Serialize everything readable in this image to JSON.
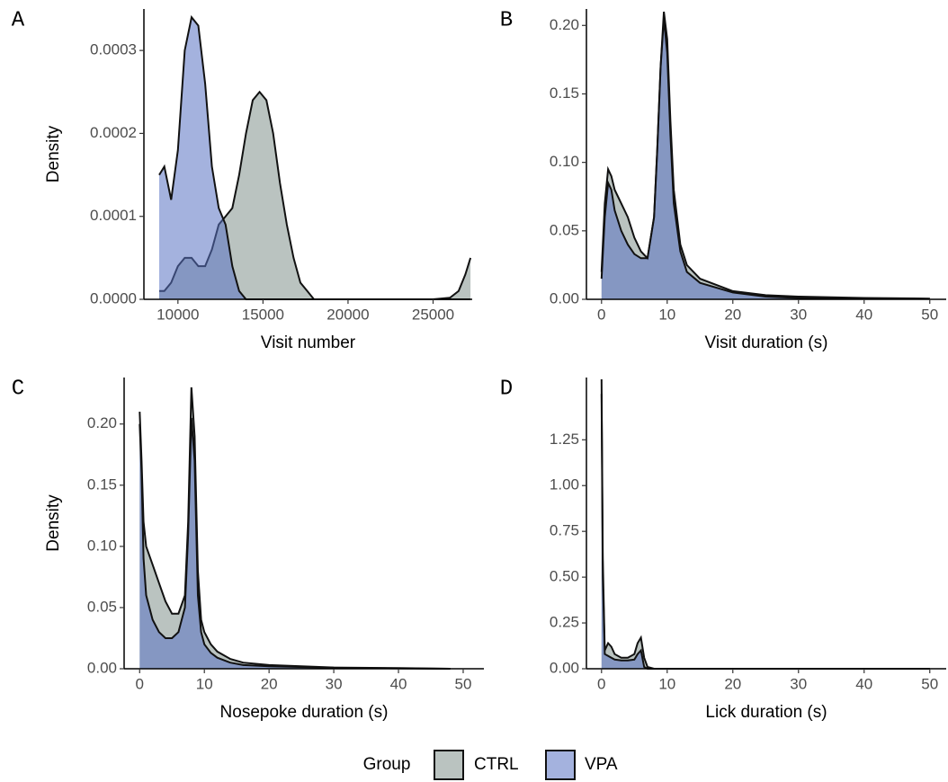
{
  "chart_data": [
    {
      "type": "density",
      "panel_label": "A",
      "x_label": "Visit number",
      "y_label": "Density",
      "x": [
        8900,
        9200,
        9600,
        10000,
        10400,
        10800,
        11200,
        11600,
        12000,
        12400,
        12800,
        13200,
        13600,
        14000,
        14400,
        14800,
        15200,
        15600,
        16000,
        16400,
        16800,
        17200,
        17600,
        18000,
        19000,
        21000,
        23000,
        25000,
        26000,
        26500,
        26900,
        27200
      ],
      "series": [
        {
          "name": "CTRL",
          "color": "#bac3c0",
          "values": [
            1e-05,
            1e-05,
            2e-05,
            4e-05,
            5e-05,
            5e-05,
            4e-05,
            4e-05,
            6e-05,
            9e-05,
            0.0001,
            0.00011,
            0.00015,
            0.0002,
            0.00024,
            0.00025,
            0.00024,
            0.0002,
            0.00014,
            9e-05,
            5e-05,
            2e-05,
            1e-05,
            0,
            0,
            0,
            0,
            0,
            2e-06,
            1e-05,
            3e-05,
            5e-05
          ]
        },
        {
          "name": "VPA",
          "color": "#5a72c2",
          "values": [
            0.00015,
            0.00016,
            0.00012,
            0.00018,
            0.0003,
            0.00034,
            0.00033,
            0.00026,
            0.00016,
            0.00011,
            9e-05,
            4e-05,
            1e-05,
            0,
            0,
            0,
            0,
            0,
            0,
            0,
            0,
            0,
            0,
            0,
            0,
            0,
            0,
            0,
            0,
            0,
            0,
            0
          ]
        }
      ],
      "xlim": [
        8000,
        27300
      ],
      "xticks": [
        10000,
        15000,
        20000,
        25000
      ],
      "ylim": [
        0,
        0.00035
      ],
      "yticks": [
        {
          "value": 0,
          "label": "0.0000"
        },
        0.0001,
        0.0002,
        0.0003
      ]
    },
    {
      "type": "density",
      "panel_label": "B",
      "x_label": "Visit duration (s)",
      "x": [
        0,
        0.5,
        1,
        1.5,
        2,
        3,
        4,
        5,
        6,
        7,
        8,
        8.5,
        9,
        9.5,
        10,
        10.5,
        11,
        12,
        13,
        15,
        20,
        25,
        30,
        40,
        50
      ],
      "series": [
        {
          "name": "CTRL",
          "color": "#bac3c0",
          "values": [
            0.02,
            0.07,
            0.095,
            0.09,
            0.08,
            0.07,
            0.06,
            0.045,
            0.035,
            0.03,
            0.06,
            0.11,
            0.17,
            0.21,
            0.19,
            0.13,
            0.08,
            0.04,
            0.025,
            0.015,
            0.006,
            0.003,
            0.002,
            0.001,
            0.0005
          ]
        },
        {
          "name": "VPA",
          "color": "#5a72c2",
          "values": [
            0.015,
            0.06,
            0.085,
            0.08,
            0.065,
            0.05,
            0.04,
            0.033,
            0.03,
            0.03,
            0.06,
            0.11,
            0.17,
            0.205,
            0.18,
            0.12,
            0.07,
            0.035,
            0.02,
            0.012,
            0.005,
            0.002,
            0.001,
            0.0005,
            0.0003
          ]
        }
      ],
      "xlim": [
        -2.3,
        52.5
      ],
      "xticks": [
        0,
        10,
        20,
        30,
        40,
        50
      ],
      "ylim": [
        0,
        0.212
      ],
      "yticks": [
        {
          "value": 0,
          "label": "0.00"
        },
        0.05,
        {
          "value": 0.1,
          "label": "0.10"
        },
        0.15,
        {
          "value": 0.2,
          "label": "0.20"
        }
      ]
    },
    {
      "type": "density",
      "panel_label": "C",
      "x_label": "Nosepoke duration (s)",
      "y_label": "Density",
      "x": [
        0,
        0.3,
        0.6,
        1,
        2,
        3,
        4,
        5,
        6,
        7,
        7.5,
        8,
        8.5,
        9,
        9.5,
        10,
        11,
        12,
        14,
        16,
        20,
        30,
        40,
        48
      ],
      "series": [
        {
          "name": "CTRL",
          "color": "#bac3c0",
          "values": [
            0.21,
            0.17,
            0.12,
            0.1,
            0.085,
            0.07,
            0.055,
            0.045,
            0.045,
            0.06,
            0.12,
            0.23,
            0.19,
            0.08,
            0.04,
            0.03,
            0.02,
            0.014,
            0.008,
            0.005,
            0.003,
            0.001,
            0.0005,
            0
          ]
        },
        {
          "name": "VPA",
          "color": "#5a72c2",
          "values": [
            0.2,
            0.16,
            0.09,
            0.06,
            0.04,
            0.03,
            0.025,
            0.025,
            0.03,
            0.05,
            0.11,
            0.205,
            0.17,
            0.06,
            0.03,
            0.02,
            0.013,
            0.009,
            0.005,
            0.003,
            0.002,
            0.0008,
            0.0003,
            0
          ]
        }
      ],
      "xlim": [
        -2.4,
        53.2
      ],
      "xticks": [
        0,
        10,
        20,
        30,
        40,
        50
      ],
      "ylim": [
        0,
        0.238
      ],
      "yticks": [
        {
          "value": 0,
          "label": "0.00"
        },
        0.05,
        {
          "value": 0.1,
          "label": "0.10"
        },
        0.15,
        {
          "value": 0.2,
          "label": "0.20"
        }
      ]
    },
    {
      "type": "density",
      "panel_label": "D",
      "x_label": "Lick duration (s)",
      "x": [
        0,
        0.2,
        0.5,
        1,
        1.5,
        2,
        3,
        4,
        5,
        5.5,
        6,
        6.5,
        7,
        8,
        10,
        50
      ],
      "series": [
        {
          "name": "CTRL",
          "color": "#bac3c0",
          "values": [
            1.58,
            0.6,
            0.1,
            0.14,
            0.12,
            0.08,
            0.06,
            0.06,
            0.08,
            0.14,
            0.17,
            0.06,
            0.01,
            0,
            0,
            0
          ]
        },
        {
          "name": "VPA",
          "color": "#5a72c2",
          "values": [
            1.5,
            0.5,
            0.08,
            0.07,
            0.06,
            0.05,
            0.045,
            0.045,
            0.05,
            0.08,
            0.1,
            0.01,
            0,
            0,
            0,
            0
          ]
        }
      ],
      "xlim": [
        -2.3,
        52.5
      ],
      "xticks": [
        0,
        10,
        20,
        30,
        40,
        50
      ],
      "ylim": [
        0,
        1.59
      ],
      "yticks": [
        {
          "value": 0,
          "label": "0.00"
        },
        0.25,
        {
          "value": 0.5,
          "label": "0.50"
        },
        0.75,
        {
          "value": 1,
          "label": "1.00"
        },
        1.25
      ]
    }
  ],
  "legend": {
    "title": "Group"
  }
}
